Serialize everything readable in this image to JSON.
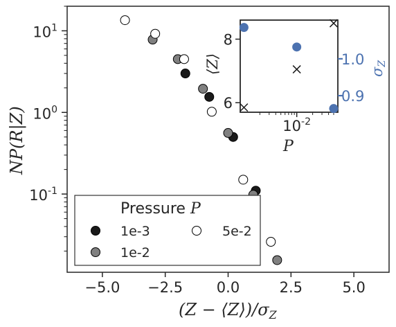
{
  "chart_data": [
    {
      "type": "scatter",
      "xlabel": "(Z − ⟨Z⟩)/σ",
      "xlabel_sub": "Z",
      "ylabel": "NP(R|Z)",
      "yscale": "log",
      "xlim": [
        -6.4,
        6.4
      ],
      "ylim": [
        0.011,
        20
      ],
      "xticks": [
        -5.0,
        -2.5,
        0.0,
        2.5,
        5.0
      ],
      "xtick_labels": [
        "−5.0",
        "−2.5",
        "0.0",
        "2.5",
        "5.0"
      ],
      "ytick_labels": [
        {
          "value": 10,
          "base": "10",
          "exp": "1"
        },
        {
          "value": 1,
          "base": "10",
          "exp": "0"
        },
        {
          "value": 0.1,
          "base": "10",
          "exp": "-1"
        }
      ],
      "legend": {
        "title": "Pressure",
        "title_symbol": "P",
        "placement": "lower-left",
        "entries": [
          "1e-3",
          "1e-2",
          "5e-2"
        ]
      },
      "series": [
        {
          "name": "1e-3",
          "color": "#1a1a1a",
          "x": [
            -1.7,
            -0.75,
            0.2,
            1.1
          ],
          "y": [
            3.0,
            1.55,
            0.5,
            0.11
          ]
        },
        {
          "name": "1e-2",
          "color": "#808080",
          "x": [
            -3.0,
            -2.0,
            -1.0,
            0.0,
            1.0,
            1.95
          ],
          "y": [
            7.8,
            4.5,
            1.95,
            0.56,
            0.098,
            0.0155
          ]
        },
        {
          "name": "5e-2",
          "color": "#ffffff",
          "x": [
            -4.1,
            -2.9,
            -1.75,
            -0.65,
            0.6,
            1.7
          ],
          "y": [
            13.5,
            9.2,
            4.5,
            1.02,
            0.15,
            0.026
          ]
        }
      ]
    },
    {
      "type": "scatter",
      "role": "inset",
      "xlabel": "P",
      "ylabel_left": "⟨Z⟩",
      "ylabel_right": "σ",
      "ylabel_right_sub": "Z",
      "xscale": "log",
      "xlim": [
        0.00085,
        0.06
      ],
      "ylim_left": [
        5.7,
        8.6
      ],
      "ylim_right": [
        0.855,
        1.105
      ],
      "x_tick_label": {
        "base": "10",
        "exp": "-2"
      },
      "left_ticks": [
        "8",
        "6"
      ],
      "left_tick_values": [
        8,
        6
      ],
      "right_ticks": [
        "1.0",
        "0.9"
      ],
      "right_tick_values": [
        1.0,
        0.9
      ],
      "right_axis_color": "#4c72b0",
      "series": [
        {
          "name": "⟨Z⟩",
          "marker": "x",
          "color": "#1a1a1a",
          "x": [
            0.001,
            0.01,
            0.05
          ],
          "y": [
            5.85,
            7.05,
            8.5
          ]
        },
        {
          "name": "σ_Z",
          "marker": "o",
          "color": "#4c72b0",
          "x": [
            0.001,
            0.01,
            0.05
          ],
          "y": [
            1.085,
            1.032,
            0.865
          ]
        }
      ]
    }
  ]
}
